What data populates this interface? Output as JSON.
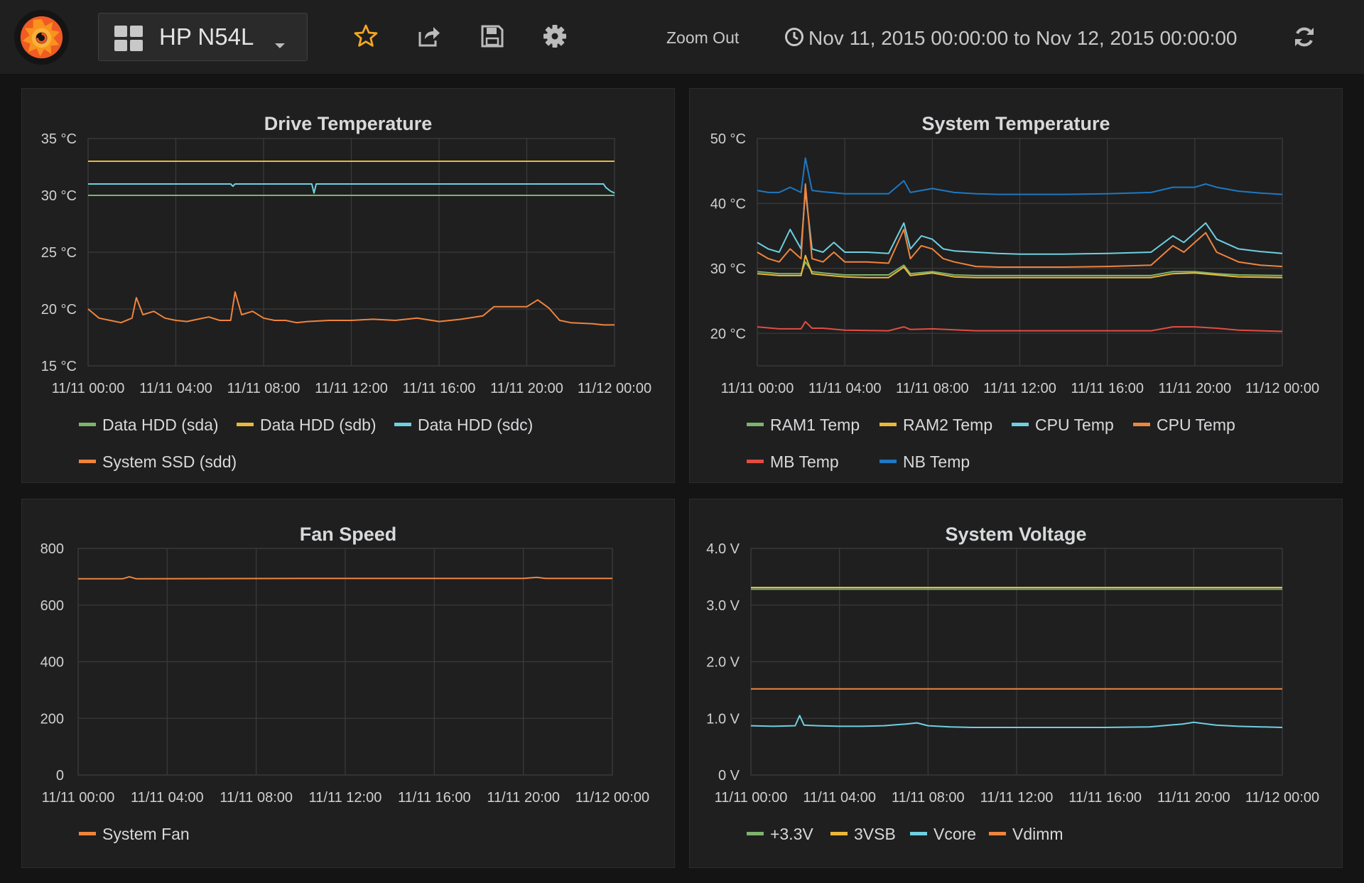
{
  "nav": {
    "dashboard_title": "HP N54L",
    "zoom_out": "Zoom Out",
    "time_range": "Nov 11, 2015 00:00:00 to Nov 12, 2015 00:00:00",
    "icons": [
      "grafana-logo-icon",
      "dashboard-grid-icon",
      "star-icon",
      "share-icon",
      "save-icon",
      "settings-gear-icon",
      "clock-icon",
      "refresh-icon"
    ],
    "star_color": "#f5a623"
  },
  "x_ticks": [
    "11/11 00:00",
    "11/11 04:00",
    "11/11 08:00",
    "11/11 12:00",
    "11/11 16:00",
    "11/11 20:00",
    "11/12 00:00"
  ],
  "colors": {
    "green": "#7eb26d",
    "yellow": "#eab839",
    "cyan": "#6ed0e0",
    "orange": "#ef843c",
    "red": "#e24d42",
    "blue": "#1f78c1"
  },
  "panels": {
    "drive": {
      "title": "Drive Temperature",
      "y_ticks": [
        "35 °C",
        "30 °C",
        "25 °C",
        "20 °C",
        "15 °C"
      ],
      "legend": [
        {
          "label": "Data HDD (sda)",
          "color": "#7eb26d"
        },
        {
          "label": "Data HDD (sdb)",
          "color": "#eab839"
        },
        {
          "label": "Data HDD (sdc)",
          "color": "#6ed0e0"
        },
        {
          "label": "System SSD (sdd)",
          "color": "#ef843c"
        }
      ]
    },
    "system_temp": {
      "title": "System Temperature",
      "y_ticks": [
        "50 °C",
        "40 °C",
        "30 °C",
        "20 °C"
      ],
      "legend": [
        {
          "label": "RAM1 Temp",
          "color": "#7eb26d"
        },
        {
          "label": "RAM2 Temp",
          "color": "#eab839"
        },
        {
          "label": "CPU Temp",
          "color": "#6ed0e0"
        },
        {
          "label": "CPU Temp",
          "color": "#ef843c"
        },
        {
          "label": "MB Temp",
          "color": "#e24d42"
        },
        {
          "label": "NB Temp",
          "color": "#1f78c1"
        }
      ]
    },
    "fan": {
      "title": "Fan Speed",
      "y_ticks": [
        "800",
        "600",
        "400",
        "200",
        "0"
      ],
      "legend": [
        {
          "label": "System Fan",
          "color": "#ef843c"
        }
      ]
    },
    "voltage": {
      "title": "System Voltage",
      "y_ticks": [
        "4.0 V",
        "3.0 V",
        "2.0 V",
        "1.0 V",
        "0 V"
      ],
      "legend": [
        {
          "label": "+3.3V",
          "color": "#7eb26d"
        },
        {
          "label": "3VSB",
          "color": "#eab839"
        },
        {
          "label": "Vcore",
          "color": "#6ed0e0"
        },
        {
          "label": "Vdimm",
          "color": "#ef843c"
        }
      ]
    }
  },
  "chart_data": [
    {
      "type": "line",
      "title": "Drive Temperature",
      "x_range": [
        "11/11 00:00",
        "11/12 00:00"
      ],
      "ylim": [
        15,
        35
      ],
      "y_unit": "°C",
      "grid": true,
      "legend_placement": "bottom",
      "series": [
        {
          "name": "Data HDD (sda)",
          "color": "#7eb26d",
          "x_hours": [
            0,
            24
          ],
          "values": [
            30,
            30
          ]
        },
        {
          "name": "Data HDD (sdb)",
          "color": "#eab839",
          "x_hours": [
            0,
            24
          ],
          "values": [
            33,
            33
          ]
        },
        {
          "name": "Data HDD (sdc)",
          "color": "#6ed0e0",
          "x_hours": [
            0,
            6.5,
            6.6,
            6.7,
            10.2,
            10.3,
            10.4,
            23.5,
            23.6,
            23.8,
            24
          ],
          "values": [
            31,
            31,
            30.8,
            31,
            31,
            30.2,
            31,
            31,
            30.7,
            30.4,
            30.2
          ]
        },
        {
          "name": "System SSD (sdd)",
          "color": "#ef843c",
          "x_hours": [
            0,
            0.5,
            1,
            1.5,
            2,
            2.2,
            2.5,
            3,
            3.5,
            4,
            4.5,
            5,
            5.5,
            6,
            6.5,
            6.7,
            7,
            7.5,
            8,
            8.5,
            9,
            9.5,
            10,
            11,
            12,
            13,
            14,
            15,
            16,
            17,
            18,
            18.5,
            19,
            20,
            20.5,
            21,
            21.5,
            22,
            23,
            23.5,
            24
          ],
          "values": [
            20,
            19.2,
            19,
            18.8,
            19.2,
            21,
            19.5,
            19.8,
            19.2,
            19,
            18.9,
            19.1,
            19.3,
            19,
            19,
            21.5,
            19.5,
            19.8,
            19.2,
            19,
            19,
            18.8,
            18.9,
            19,
            19,
            19.1,
            19,
            19.2,
            18.9,
            19.1,
            19.4,
            20.2,
            20.2,
            20.2,
            20.8,
            20.1,
            19,
            18.8,
            18.7,
            18.6,
            18.6
          ]
        }
      ]
    },
    {
      "type": "line",
      "title": "System Temperature",
      "x_range": [
        "11/11 00:00",
        "11/12 00:00"
      ],
      "ylim": [
        15,
        50
      ],
      "y_unit": "°C",
      "grid": true,
      "legend_placement": "bottom",
      "series": [
        {
          "name": "RAM1 Temp",
          "color": "#7eb26d",
          "x_hours": [
            0,
            1,
            2,
            2.2,
            2.5,
            3,
            4,
            5,
            6,
            6.7,
            7,
            8,
            9,
            10,
            12,
            14,
            16,
            18,
            19,
            20,
            21,
            22,
            24
          ],
          "values": [
            29.5,
            29.2,
            29.2,
            31,
            29.5,
            29.3,
            29,
            29,
            29,
            30.5,
            29.2,
            29.5,
            29,
            28.9,
            28.9,
            28.9,
            28.9,
            28.9,
            29.5,
            29.5,
            29.2,
            29,
            28.9
          ]
        },
        {
          "name": "RAM2 Temp",
          "color": "#eab839",
          "x_hours": [
            0,
            1,
            2,
            2.2,
            2.5,
            3,
            4,
            5,
            6,
            6.7,
            7,
            8,
            9,
            10,
            12,
            14,
            16,
            18,
            19,
            20,
            21,
            22,
            24
          ],
          "values": [
            29.2,
            28.9,
            28.9,
            32,
            29.2,
            29,
            28.7,
            28.6,
            28.6,
            30.2,
            28.9,
            29.3,
            28.7,
            28.6,
            28.6,
            28.6,
            28.6,
            28.6,
            29.2,
            29.3,
            29,
            28.7,
            28.6
          ]
        },
        {
          "name": "CPU Temp",
          "color": "#6ed0e0",
          "x_hours": [
            0,
            0.5,
            1,
            1.5,
            2,
            2.2,
            2.5,
            3,
            3.5,
            4,
            5,
            6,
            6.7,
            7,
            7.5,
            8,
            8.5,
            9,
            10,
            11,
            12,
            14,
            16,
            18,
            19,
            19.5,
            20,
            20.5,
            21,
            22,
            23,
            24
          ],
          "values": [
            34,
            33,
            32.5,
            36,
            33,
            42,
            33,
            32.5,
            34,
            32.5,
            32.5,
            32.3,
            37,
            33,
            35,
            34.5,
            33,
            32.7,
            32.5,
            32.3,
            32.2,
            32.2,
            32.3,
            32.5,
            35,
            34,
            35.5,
            37,
            34.5,
            33,
            32.6,
            32.3
          ]
        },
        {
          "name": "CPU Temp",
          "color": "#ef843c",
          "x_hours": [
            0,
            0.5,
            1,
            1.5,
            2,
            2.2,
            2.5,
            3,
            3.5,
            4,
            5,
            6,
            6.7,
            7,
            7.5,
            8,
            8.5,
            9,
            10,
            11,
            12,
            14,
            16,
            18,
            19,
            19.5,
            20,
            20.5,
            21,
            22,
            23,
            24
          ],
          "values": [
            32.5,
            31.5,
            31,
            33,
            31.5,
            43,
            31.5,
            31,
            32.5,
            31,
            31,
            30.8,
            36,
            31.5,
            33.5,
            33,
            31.5,
            31,
            30.3,
            30.2,
            30.2,
            30.2,
            30.3,
            30.5,
            33.5,
            32.5,
            34,
            35.5,
            32.5,
            31,
            30.5,
            30.3
          ]
        },
        {
          "name": "MB Temp",
          "color": "#e24d42",
          "x_hours": [
            0,
            1,
            2,
            2.2,
            2.5,
            3,
            4,
            6,
            6.7,
            7,
            8,
            10,
            12,
            16,
            18,
            19,
            20,
            21,
            22,
            24
          ],
          "values": [
            21,
            20.7,
            20.7,
            21.8,
            20.8,
            20.8,
            20.5,
            20.4,
            21,
            20.6,
            20.7,
            20.4,
            20.4,
            20.4,
            20.4,
            21,
            21,
            20.8,
            20.5,
            20.3
          ]
        },
        {
          "name": "NB Temp",
          "color": "#1f78c1",
          "x_hours": [
            0,
            0.5,
            1,
            1.5,
            2,
            2.2,
            2.5,
            3,
            4,
            5,
            6,
            6.7,
            7,
            8,
            9,
            10,
            11,
            12,
            14,
            16,
            18,
            19,
            20,
            20.5,
            21,
            22,
            23,
            24
          ],
          "values": [
            42,
            41.7,
            41.7,
            42.5,
            41.7,
            47,
            42,
            41.8,
            41.5,
            41.5,
            41.5,
            43.5,
            41.7,
            42.3,
            41.7,
            41.5,
            41.4,
            41.4,
            41.4,
            41.5,
            41.7,
            42.5,
            42.5,
            43,
            42.5,
            41.9,
            41.6,
            41.4
          ]
        }
      ]
    },
    {
      "type": "line",
      "title": "Fan Speed",
      "x_range": [
        "11/11 00:00",
        "11/12 00:00"
      ],
      "ylim": [
        0,
        800
      ],
      "grid": true,
      "legend_placement": "bottom",
      "series": [
        {
          "name": "System Fan",
          "color": "#ef843c",
          "x_hours": [
            0,
            2,
            2.3,
            2.6,
            10,
            20,
            20.6,
            21,
            24
          ],
          "values": [
            693,
            693,
            700,
            693,
            694,
            694,
            698,
            694,
            694
          ]
        }
      ]
    },
    {
      "type": "line",
      "title": "System Voltage",
      "x_range": [
        "11/11 00:00",
        "11/12 00:00"
      ],
      "ylim": [
        0,
        4
      ],
      "y_unit": "V",
      "grid": true,
      "legend_placement": "bottom",
      "series": [
        {
          "name": "+3.3V",
          "color": "#7eb26d",
          "x_hours": [
            0,
            24
          ],
          "values": [
            3.28,
            3.28
          ]
        },
        {
          "name": "3VSB",
          "color": "#eab839",
          "x_hours": [
            0,
            24
          ],
          "values": [
            3.31,
            3.31
          ]
        },
        {
          "name": "Vcore",
          "color": "#6ed0e0",
          "x_hours": [
            0,
            1,
            2,
            2.2,
            2.4,
            3,
            4,
            5,
            6,
            7,
            7.5,
            8,
            9,
            10,
            12,
            14,
            16,
            18,
            19.5,
            20,
            21,
            22,
            24
          ],
          "values": [
            0.87,
            0.86,
            0.87,
            1.05,
            0.88,
            0.87,
            0.86,
            0.86,
            0.87,
            0.9,
            0.92,
            0.87,
            0.85,
            0.84,
            0.84,
            0.84,
            0.84,
            0.85,
            0.9,
            0.93,
            0.88,
            0.86,
            0.84
          ]
        },
        {
          "name": "Vdimm",
          "color": "#ef843c",
          "x_hours": [
            0,
            24
          ],
          "values": [
            1.52,
            1.52
          ]
        }
      ]
    }
  ]
}
